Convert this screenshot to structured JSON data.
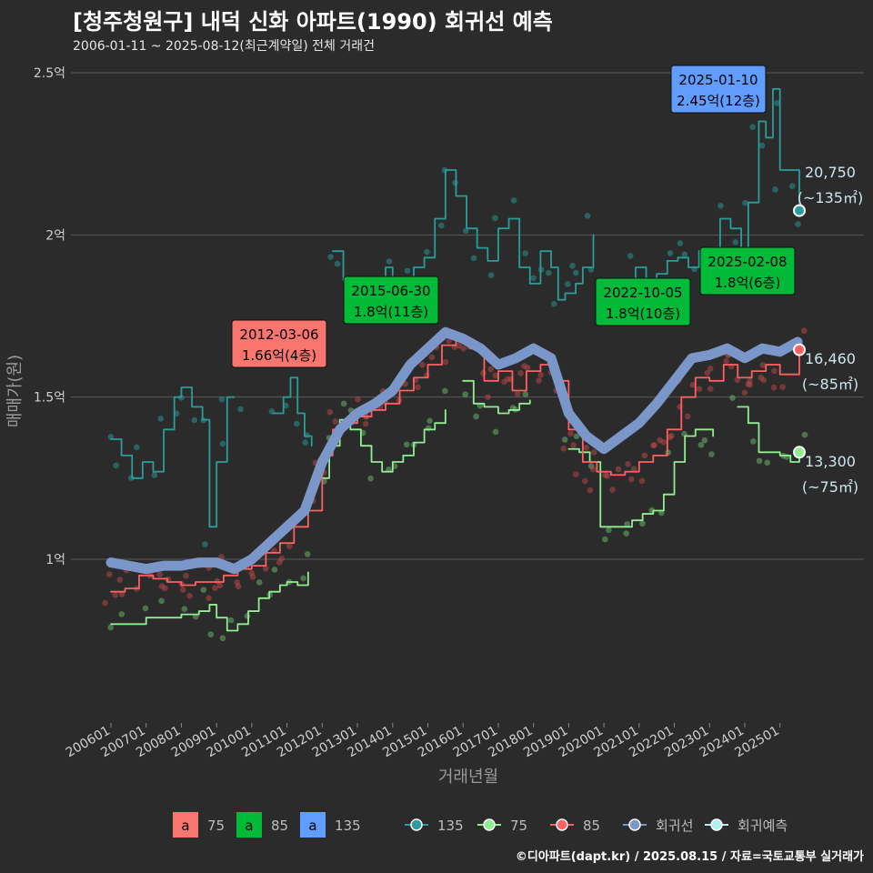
{
  "title": "[청주청원구] 내덕 신화 아파트(1990) 회귀선 예측",
  "subtitle": "2006-01-11 ~ 2025-08-12(최근계약일) 전체 거래건",
  "caption": "©디아파트(dapt.kr) / 2025.08.15 / 자료=국토교통부 실거래가",
  "colors": {
    "s75": "#f8766d",
    "s85": "#00ba38",
    "s135": "#619cff",
    "line135": "#2a9d9a",
    "line75": "#90ee90",
    "line85": "#ff6060",
    "regression": "#7b96c8",
    "forecast": "#b0f0f0",
    "grid": "#5a5a5a",
    "bg": "#2b2b2b"
  },
  "chart_data": {
    "type": "line",
    "xlabel": "거래년월",
    "ylabel": "매매가(원)",
    "x_ticks": [
      "200601",
      "200701",
      "200801",
      "200901",
      "201001",
      "201101",
      "201201",
      "201301",
      "201401",
      "201501",
      "201601",
      "201701",
      "201801",
      "201901",
      "202001",
      "202101",
      "202201",
      "202301",
      "202401",
      "202501"
    ],
    "y_ticks": [
      {
        "value": 1.0,
        "label": "1억"
      },
      {
        "value": 1.5,
        "label": "1.5억"
      },
      {
        "value": 2.0,
        "label": "2억"
      },
      {
        "value": 2.5,
        "label": "2.5억"
      }
    ],
    "ylim": [
      0.5,
      2.6
    ],
    "series": [
      {
        "name": "135",
        "values": [
          [
            2006.0,
            1.37
          ],
          [
            2006.3,
            1.32
          ],
          [
            2006.6,
            1.25
          ],
          [
            2006.9,
            1.3
          ],
          [
            2007.2,
            1.27
          ],
          [
            2007.5,
            1.4
          ],
          [
            2007.8,
            1.5
          ],
          [
            2008.0,
            1.53
          ],
          [
            2008.3,
            1.47
          ],
          [
            2008.6,
            1.43
          ],
          [
            2008.8,
            1.1
          ],
          [
            2009.0,
            1.3
          ],
          [
            2009.3,
            1.5
          ],
          [
            2009.5,
            1.5
          ]
        ]
      },
      {
        "name": "135b",
        "values": [
          [
            2010.6,
            1.45
          ],
          [
            2010.9,
            1.5
          ],
          [
            2011.1,
            1.56
          ],
          [
            2011.3,
            1.45
          ],
          [
            2011.5,
            1.38
          ],
          [
            2011.7,
            1.35
          ]
        ]
      },
      {
        "name": "135c",
        "values": [
          [
            2012.3,
            1.95
          ],
          [
            2012.6,
            1.86
          ],
          [
            2012.9,
            1.8
          ],
          [
            2013.2,
            1.8
          ],
          [
            2013.5,
            1.86
          ],
          [
            2013.8,
            1.9
          ],
          [
            2014.0,
            1.8
          ],
          [
            2014.3,
            1.86
          ],
          [
            2014.6,
            1.9
          ],
          [
            2014.9,
            1.93
          ],
          [
            2015.2,
            2.05
          ],
          [
            2015.5,
            2.2
          ],
          [
            2015.8,
            2.12
          ],
          [
            2016.1,
            2.02
          ],
          [
            2016.4,
            1.96
          ],
          [
            2016.7,
            1.92
          ],
          [
            2017.0,
            2.02
          ],
          [
            2017.3,
            2.05
          ],
          [
            2017.6,
            1.9
          ],
          [
            2017.9,
            1.85
          ],
          [
            2018.2,
            1.95
          ],
          [
            2018.5,
            1.9
          ],
          [
            2018.7,
            1.8
          ],
          [
            2018.9,
            1.82
          ],
          [
            2019.2,
            1.85
          ],
          [
            2019.4,
            1.9
          ],
          [
            2019.6,
            1.9
          ],
          [
            2019.7,
            2.0
          ]
        ]
      },
      {
        "name": "135d",
        "values": [
          [
            2020.3,
            1.81
          ],
          [
            2020.6,
            1.85
          ],
          [
            2020.9,
            1.9
          ],
          [
            2021.2,
            1.82
          ],
          [
            2021.5,
            1.88
          ],
          [
            2021.8,
            1.92
          ],
          [
            2022.1,
            1.93
          ],
          [
            2022.4,
            1.9
          ],
          [
            2022.7,
            1.95
          ],
          [
            2023.0,
            1.9
          ],
          [
            2023.3,
            2.05
          ],
          [
            2023.6,
            2.02
          ],
          [
            2023.9,
            1.96
          ],
          [
            2024.1,
            2.1
          ],
          [
            2024.4,
            2.35
          ],
          [
            2024.6,
            2.3
          ],
          [
            2024.8,
            2.45
          ],
          [
            2025.0,
            2.2
          ],
          [
            2025.3,
            2.2
          ],
          [
            2025.55,
            2.08
          ]
        ]
      },
      {
        "name": "75",
        "values": [
          [
            2006.0,
            0.8
          ],
          [
            2006.5,
            0.8
          ],
          [
            2007.0,
            0.82
          ],
          [
            2007.5,
            0.82
          ],
          [
            2008.0,
            0.83
          ],
          [
            2008.5,
            0.84
          ],
          [
            2008.8,
            0.86
          ],
          [
            2009.0,
            0.82
          ],
          [
            2009.3,
            0.78
          ],
          [
            2009.6,
            0.8
          ],
          [
            2009.9,
            0.84
          ],
          [
            2010.2,
            0.88
          ],
          [
            2010.5,
            0.9
          ],
          [
            2010.8,
            0.92
          ],
          [
            2011.0,
            0.93
          ],
          [
            2011.3,
            0.92
          ],
          [
            2011.6,
            0.96
          ]
        ]
      },
      {
        "name": "75b",
        "values": [
          [
            2011.9,
            1.25
          ],
          [
            2012.2,
            1.35
          ],
          [
            2012.5,
            1.43
          ],
          [
            2012.8,
            1.4
          ],
          [
            2013.1,
            1.35
          ],
          [
            2013.4,
            1.3
          ],
          [
            2013.7,
            1.27
          ],
          [
            2014.0,
            1.3
          ],
          [
            2014.3,
            1.32
          ],
          [
            2014.6,
            1.36
          ],
          [
            2014.9,
            1.4
          ],
          [
            2015.2,
            1.42
          ],
          [
            2015.5,
            1.46
          ]
        ]
      },
      {
        "name": "75c",
        "values": [
          [
            2016.0,
            1.55
          ],
          [
            2016.3,
            1.48
          ],
          [
            2016.6,
            1.47
          ],
          [
            2017.0,
            1.45
          ],
          [
            2017.3,
            1.46
          ],
          [
            2017.6,
            1.48
          ],
          [
            2017.9,
            1.49
          ]
        ]
      },
      {
        "name": "75d",
        "values": [
          [
            2019.0,
            1.34
          ],
          [
            2019.3,
            1.33
          ],
          [
            2019.6,
            1.3
          ],
          [
            2019.9,
            1.1
          ],
          [
            2020.2,
            1.1
          ],
          [
            2020.5,
            1.1
          ],
          [
            2020.8,
            1.12
          ],
          [
            2021.1,
            1.14
          ],
          [
            2021.4,
            1.15
          ],
          [
            2021.7,
            1.2
          ],
          [
            2022.0,
            1.3
          ],
          [
            2022.3,
            1.38
          ],
          [
            2022.6,
            1.4
          ],
          [
            2022.9,
            1.4
          ],
          [
            2023.1,
            1.38
          ]
        ]
      },
      {
        "name": "75e",
        "values": [
          [
            2023.8,
            1.47
          ],
          [
            2024.1,
            1.42
          ],
          [
            2024.4,
            1.33
          ],
          [
            2024.7,
            1.33
          ],
          [
            2025.0,
            1.32
          ],
          [
            2025.3,
            1.3
          ],
          [
            2025.55,
            1.33
          ]
        ]
      },
      {
        "name": "85",
        "values": [
          [
            2006.0,
            0.9
          ],
          [
            2006.4,
            0.91
          ],
          [
            2006.8,
            0.95
          ],
          [
            2007.2,
            0.94
          ],
          [
            2007.6,
            0.93
          ],
          [
            2008.0,
            0.92
          ],
          [
            2008.4,
            0.93
          ],
          [
            2008.8,
            0.93
          ],
          [
            2009.2,
            0.95
          ],
          [
            2009.6,
            0.97
          ],
          [
            2010.0,
            0.98
          ],
          [
            2010.4,
            1.02
          ],
          [
            2010.8,
            1.05
          ],
          [
            2011.2,
            1.1
          ],
          [
            2011.6,
            1.15
          ],
          [
            2012.0,
            1.32
          ],
          [
            2012.3,
            1.4
          ],
          [
            2012.6,
            1.42
          ],
          [
            2013.0,
            1.44
          ],
          [
            2013.4,
            1.46
          ],
          [
            2013.8,
            1.48
          ],
          [
            2014.2,
            1.52
          ],
          [
            2014.6,
            1.56
          ],
          [
            2015.0,
            1.6
          ],
          [
            2015.4,
            1.66
          ],
          [
            2015.8,
            1.68
          ],
          [
            2016.2,
            1.65
          ],
          [
            2016.6,
            1.55
          ],
          [
            2017.0,
            1.58
          ],
          [
            2017.4,
            1.52
          ],
          [
            2017.8,
            1.58
          ],
          [
            2018.2,
            1.6
          ],
          [
            2018.6,
            1.55
          ],
          [
            2019.0,
            1.4
          ],
          [
            2019.4,
            1.3
          ],
          [
            2019.8,
            1.27
          ],
          [
            2020.2,
            1.26
          ],
          [
            2020.6,
            1.27
          ],
          [
            2021.0,
            1.3
          ],
          [
            2021.4,
            1.32
          ],
          [
            2021.8,
            1.4
          ],
          [
            2022.2,
            1.5
          ],
          [
            2022.6,
            1.56
          ],
          [
            2023.0,
            1.55
          ],
          [
            2023.4,
            1.6
          ],
          [
            2023.8,
            1.56
          ],
          [
            2024.2,
            1.58
          ],
          [
            2024.6,
            1.6
          ],
          [
            2025.0,
            1.57
          ],
          [
            2025.55,
            1.65
          ]
        ]
      },
      {
        "name": "회귀선",
        "values": [
          [
            2006.0,
            0.99
          ],
          [
            2006.5,
            0.98
          ],
          [
            2007.0,
            0.97
          ],
          [
            2007.5,
            0.98
          ],
          [
            2008.0,
            0.98
          ],
          [
            2008.5,
            0.99
          ],
          [
            2009.0,
            0.99
          ],
          [
            2009.5,
            0.97
          ],
          [
            2010.0,
            1.0
          ],
          [
            2010.5,
            1.05
          ],
          [
            2011.0,
            1.1
          ],
          [
            2011.5,
            1.15
          ],
          [
            2012.0,
            1.3
          ],
          [
            2012.5,
            1.4
          ],
          [
            2013.0,
            1.45
          ],
          [
            2013.5,
            1.48
          ],
          [
            2014.0,
            1.52
          ],
          [
            2014.5,
            1.6
          ],
          [
            2015.0,
            1.65
          ],
          [
            2015.5,
            1.7
          ],
          [
            2016.0,
            1.68
          ],
          [
            2016.5,
            1.65
          ],
          [
            2017.0,
            1.6
          ],
          [
            2017.5,
            1.62
          ],
          [
            2018.0,
            1.65
          ],
          [
            2018.5,
            1.62
          ],
          [
            2019.0,
            1.45
          ],
          [
            2019.5,
            1.38
          ],
          [
            2020.0,
            1.34
          ],
          [
            2020.5,
            1.38
          ],
          [
            2021.0,
            1.42
          ],
          [
            2021.5,
            1.48
          ],
          [
            2022.0,
            1.55
          ],
          [
            2022.5,
            1.62
          ],
          [
            2023.0,
            1.63
          ],
          [
            2023.5,
            1.65
          ],
          [
            2024.0,
            1.62
          ],
          [
            2024.5,
            1.65
          ],
          [
            2025.0,
            1.64
          ],
          [
            2025.5,
            1.67
          ]
        ]
      }
    ],
    "annotations": [
      {
        "date": "2012-03-06",
        "price": "1.66억(4층)",
        "type": "75",
        "x": 2012.18,
        "y": 1.66
      },
      {
        "date": "2015-06-30",
        "price": "1.8억(11층)",
        "type": "85",
        "x": 2015.5,
        "y": 1.8
      },
      {
        "date": "2022-10-05",
        "price": "1.8억(10층)",
        "type": "85",
        "x": 2022.76,
        "y": 1.8
      },
      {
        "date": "2025-02-08",
        "price": "1.8억(6층)",
        "type": "85",
        "x": 2025.1,
        "y": 1.8
      },
      {
        "date": "2025-01-10",
        "price": "2.45억(12층)",
        "type": "135",
        "x": 2025.03,
        "y": 2.45
      }
    ],
    "end_labels": [
      {
        "value": "20,750",
        "area": "(~135㎡)",
        "y": 2.075,
        "color": "#2a9d9a"
      },
      {
        "value": "16,460",
        "area": "(~85㎡)",
        "y": 1.646,
        "color": "#ff6060"
      },
      {
        "value": "13,300",
        "area": "(~75㎡)",
        "y": 1.33,
        "color": "#90ee90"
      }
    ],
    "legend": {
      "position": "bottom",
      "fill_items": [
        {
          "name": "75",
          "letter": "a"
        },
        {
          "name": "85",
          "letter": "a"
        },
        {
          "name": "135",
          "letter": "a"
        }
      ],
      "line_items": [
        "135",
        "75",
        "85",
        "회귀선",
        "회귀예측"
      ]
    }
  }
}
